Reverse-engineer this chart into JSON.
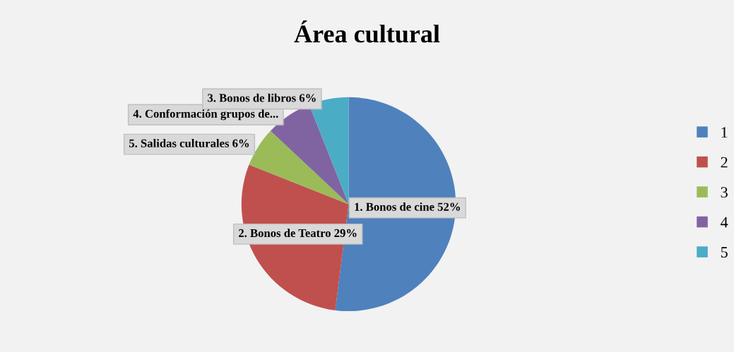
{
  "chart_data": {
    "type": "pie",
    "title": "Área cultural",
    "categories": [
      "1",
      "2",
      "3",
      "4",
      "5"
    ],
    "values": [
      52,
      29,
      6,
      7,
      6
    ],
    "colors": [
      "#4f81bd",
      "#c0504d",
      "#9bbb59",
      "#8064a2",
      "#4bacc6"
    ],
    "value_labels": [
      "1. Bonos de cine 52%",
      "2. Bonos de Teatro 29%",
      "5. Salidas culturales 6%",
      "4. Conformación grupos de...",
      "3. Bonos de libros 6%"
    ],
    "legend": "right"
  }
}
